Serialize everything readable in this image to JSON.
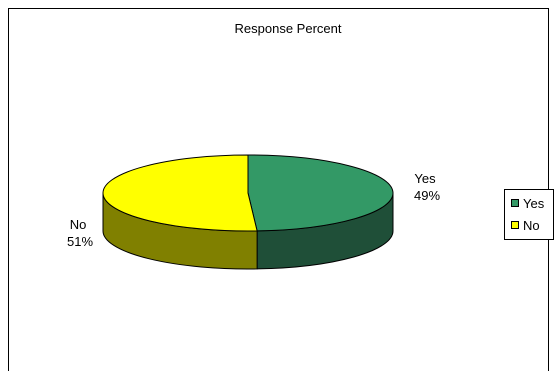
{
  "chart_data": {
    "type": "pie",
    "title": "Response Percent",
    "categories": [
      "Yes",
      "No"
    ],
    "values": [
      49,
      51
    ],
    "data_labels": [
      {
        "category": "Yes",
        "percent": "49%"
      },
      {
        "category": "No",
        "percent": "51%"
      }
    ],
    "colors": {
      "Yes": {
        "top": "#339966",
        "side": "#1f4f38"
      },
      "No": {
        "top": "#ffff00",
        "side": "#808000"
      }
    },
    "legend": {
      "placement": "right",
      "entries": [
        "Yes",
        "No"
      ]
    },
    "three_d": true
  }
}
